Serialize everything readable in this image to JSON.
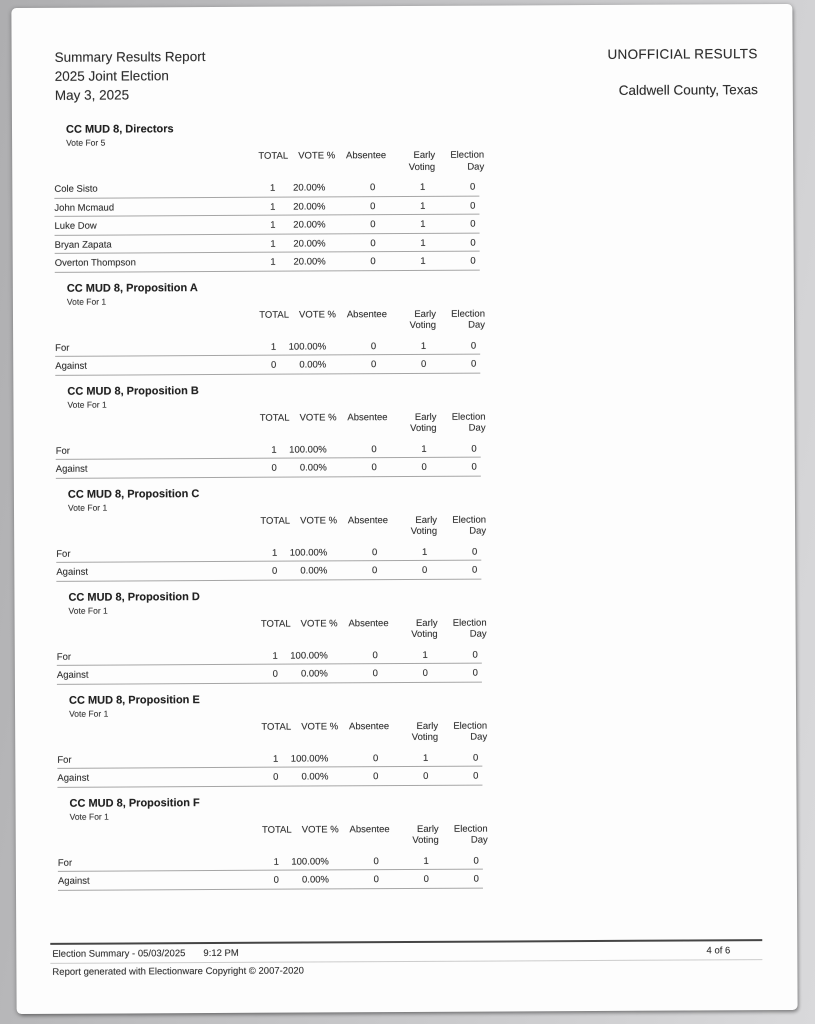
{
  "header": {
    "title_line1": "Summary Results Report",
    "title_line2": "2025 Joint Election",
    "title_line3": "May 3, 2025",
    "status": "UNOFFICIAL RESULTS",
    "location": "Caldwell County, Texas"
  },
  "headers": {
    "total": "TOTAL",
    "vote_pct": "VOTE %",
    "absentee": "Absentee",
    "early_1": "Early",
    "early_2": "Voting",
    "eday_1": "Election",
    "eday_2": "Day"
  },
  "sections": [
    {
      "title": "CC MUD 8, Directors",
      "vote_for": "Vote For 5",
      "rows": [
        {
          "label": "Cole Sisto",
          "total": "1",
          "pct": "20.00%",
          "absentee": "0",
          "early": "1",
          "eday": "0"
        },
        {
          "label": "John Mcmaud",
          "total": "1",
          "pct": "20.00%",
          "absentee": "0",
          "early": "1",
          "eday": "0"
        },
        {
          "label": "Luke Dow",
          "total": "1",
          "pct": "20.00%",
          "absentee": "0",
          "early": "1",
          "eday": "0"
        },
        {
          "label": "Bryan Zapata",
          "total": "1",
          "pct": "20.00%",
          "absentee": "0",
          "early": "1",
          "eday": "0"
        },
        {
          "label": "Overton Thompson",
          "total": "1",
          "pct": "20.00%",
          "absentee": "0",
          "early": "1",
          "eday": "0"
        }
      ]
    },
    {
      "title": "CC MUD 8, Proposition A",
      "vote_for": "Vote For 1",
      "rows": [
        {
          "label": "For",
          "total": "1",
          "pct": "100.00%",
          "absentee": "0",
          "early": "1",
          "eday": "0"
        },
        {
          "label": "Against",
          "total": "0",
          "pct": "0.00%",
          "absentee": "0",
          "early": "0",
          "eday": "0"
        }
      ]
    },
    {
      "title": "CC MUD 8, Proposition B",
      "vote_for": "Vote For 1",
      "rows": [
        {
          "label": "For",
          "total": "1",
          "pct": "100.00%",
          "absentee": "0",
          "early": "1",
          "eday": "0"
        },
        {
          "label": "Against",
          "total": "0",
          "pct": "0.00%",
          "absentee": "0",
          "early": "0",
          "eday": "0"
        }
      ]
    },
    {
      "title": "CC MUD 8, Proposition C",
      "vote_for": "Vote For 1",
      "rows": [
        {
          "label": "For",
          "total": "1",
          "pct": "100.00%",
          "absentee": "0",
          "early": "1",
          "eday": "0"
        },
        {
          "label": "Against",
          "total": "0",
          "pct": "0.00%",
          "absentee": "0",
          "early": "0",
          "eday": "0"
        }
      ]
    },
    {
      "title": "CC MUD 8, Proposition D",
      "vote_for": "Vote For 1",
      "rows": [
        {
          "label": "For",
          "total": "1",
          "pct": "100.00%",
          "absentee": "0",
          "early": "1",
          "eday": "0"
        },
        {
          "label": "Against",
          "total": "0",
          "pct": "0.00%",
          "absentee": "0",
          "early": "0",
          "eday": "0"
        }
      ]
    },
    {
      "title": "CC MUD 8, Proposition E",
      "vote_for": "Vote For 1",
      "rows": [
        {
          "label": "For",
          "total": "1",
          "pct": "100.00%",
          "absentee": "0",
          "early": "1",
          "eday": "0"
        },
        {
          "label": "Against",
          "total": "0",
          "pct": "0.00%",
          "absentee": "0",
          "early": "0",
          "eday": "0"
        }
      ]
    },
    {
      "title": "CC MUD 8, Proposition F",
      "vote_for": "Vote For 1",
      "rows": [
        {
          "label": "For",
          "total": "1",
          "pct": "100.00%",
          "absentee": "0",
          "early": "1",
          "eday": "0"
        },
        {
          "label": "Against",
          "total": "0",
          "pct": "0.00%",
          "absentee": "0",
          "early": "0",
          "eday": "0"
        }
      ]
    }
  ],
  "footer": {
    "summary": "Election Summary - 05/03/2025",
    "time": "9:12 PM",
    "page_indicator": "4 of 6",
    "attribution": "Report generated with Electionware Copyright © 2007-2020"
  }
}
